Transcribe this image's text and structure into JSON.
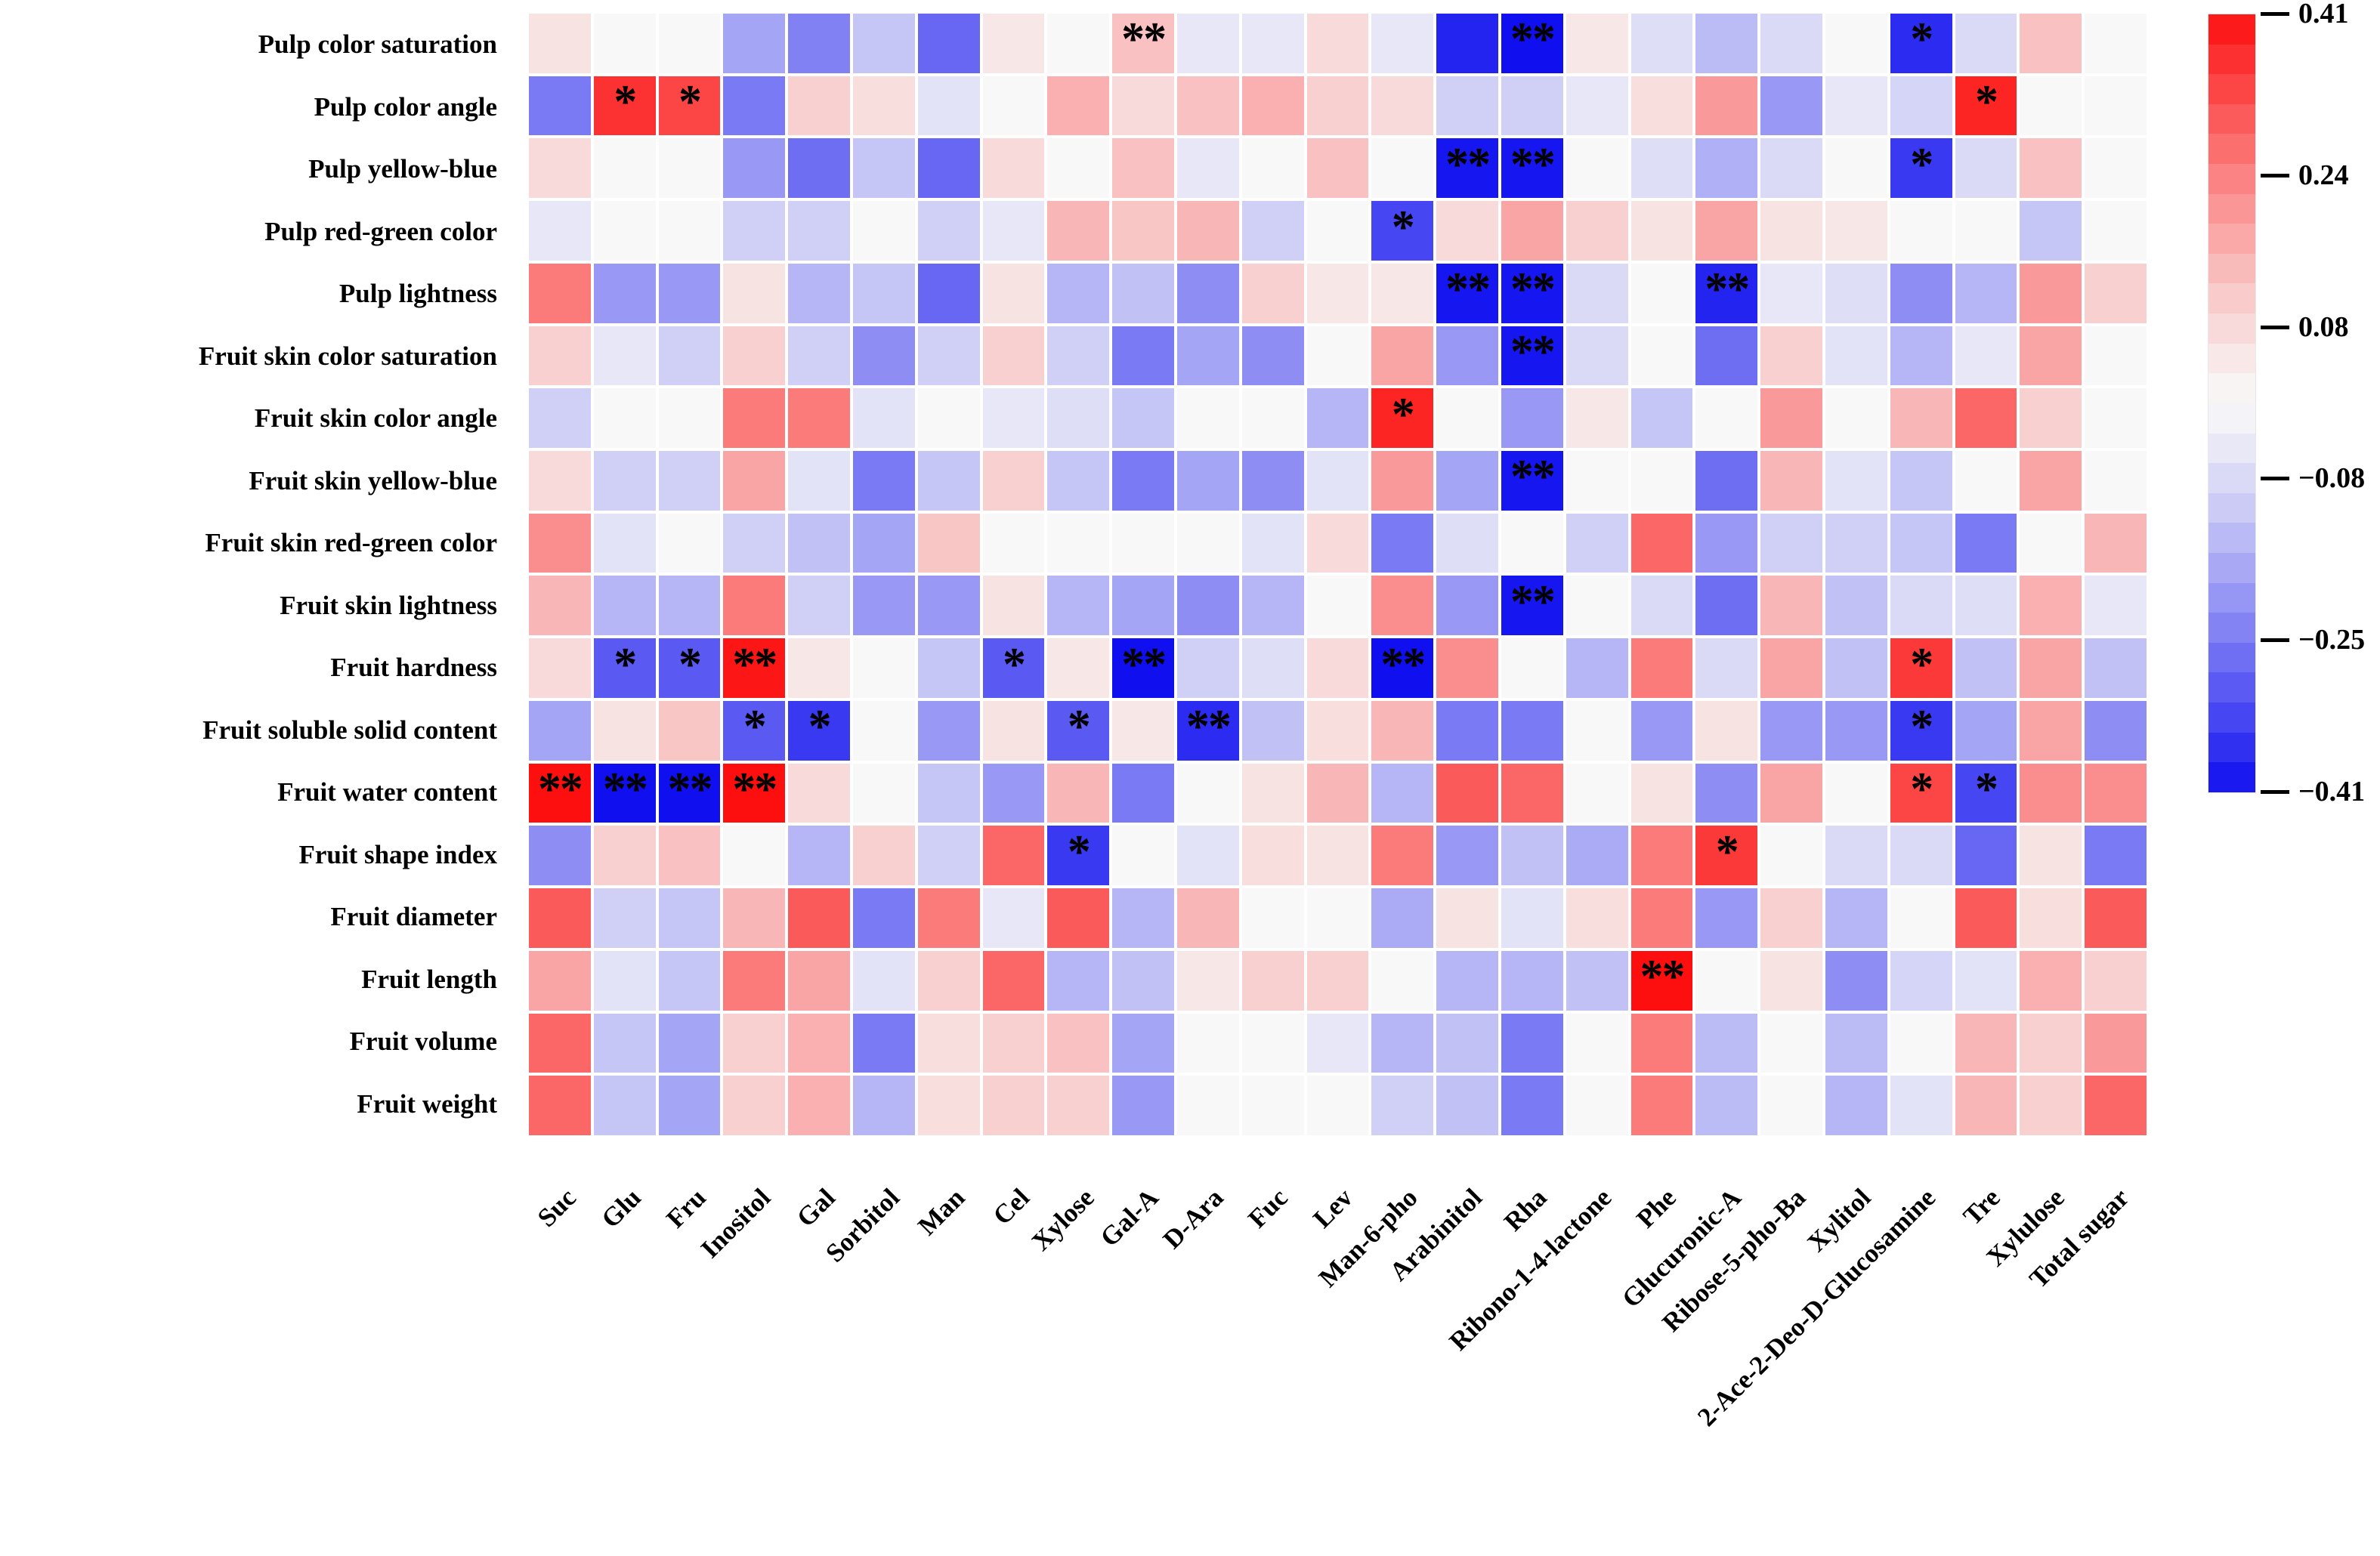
{
  "chart_data": {
    "type": "heatmap",
    "title": "",
    "xlabel": "",
    "ylabel": "",
    "legend_position": "right",
    "grid": "white-gaps",
    "rows": [
      "Pulp color saturation",
      "Pulp color angle",
      "Pulp yellow-blue",
      "Pulp red-green color",
      "Pulp lightness",
      "Fruit skin color saturation",
      "Fruit skin color angle",
      "Fruit skin yellow-blue",
      "Fruit skin red-green color",
      "Fruit skin lightness",
      "Fruit hardness",
      "Fruit soluble solid content",
      "Fruit water content",
      "Fruit shape index",
      "Fruit diameter",
      "Fruit length",
      "Fruit volume",
      "Fruit weight"
    ],
    "columns": [
      "Suc",
      "Glu",
      "Fru",
      "Inositol",
      "Gal",
      "Sorbitol",
      "Man",
      "Cel",
      "Xylose",
      "Gal-A",
      "D-Ara",
      "Fuc",
      "Lev",
      "Man-6-pho",
      "Arabinitol",
      "Rha",
      "Ribono-1-4-lactone",
      "Phe",
      "Glucuronic-A",
      "Ribose-5-pho-Ba",
      "Xylitol",
      "2-Ace-2-Deo-D-Glucosamine",
      "Tre",
      "Xylulose",
      "Total sugar"
    ],
    "values": [
      [
        0.06,
        0,
        0,
        -0.18,
        -0.24,
        -0.12,
        -0.28,
        0.05,
        0,
        0.13,
        -0.05,
        -0.05,
        0.08,
        -0.05,
        -0.38,
        -0.41,
        0.05,
        -0.07,
        -0.14,
        -0.08,
        0,
        -0.37,
        -0.08,
        0.13,
        0
      ],
      [
        -0.25,
        0.36,
        0.33,
        -0.25,
        0.1,
        0.07,
        -0.06,
        0,
        0.16,
        0.08,
        0.13,
        0.16,
        0.1,
        0.08,
        -0.1,
        -0.1,
        -0.05,
        0.07,
        0.2,
        -0.2,
        -0.05,
        -0.09,
        0.38,
        0,
        0
      ],
      [
        0.08,
        0,
        0,
        -0.2,
        -0.27,
        -0.12,
        -0.28,
        0.08,
        0,
        0.13,
        -0.05,
        0,
        0.13,
        0,
        -0.4,
        -0.4,
        0,
        -0.07,
        -0.16,
        -0.08,
        0,
        -0.35,
        -0.08,
        0.13,
        0
      ],
      [
        -0.05,
        0,
        0,
        -0.1,
        -0.1,
        0,
        -0.1,
        -0.05,
        0.15,
        0.12,
        0.15,
        -0.1,
        0,
        -0.33,
        0.08,
        0.18,
        0.1,
        0.06,
        0.18,
        0.06,
        0.05,
        0,
        0,
        -0.12,
        0
      ],
      [
        0.25,
        -0.2,
        -0.2,
        0.06,
        -0.15,
        -0.12,
        -0.28,
        0.06,
        -0.15,
        -0.13,
        -0.22,
        0.1,
        0.05,
        0.05,
        -0.4,
        -0.4,
        -0.08,
        0,
        -0.38,
        -0.05,
        -0.07,
        -0.22,
        -0.15,
        0.2,
        0.1
      ],
      [
        0.1,
        -0.05,
        -0.1,
        0.1,
        -0.1,
        -0.22,
        -0.1,
        0.1,
        -0.1,
        -0.25,
        -0.18,
        -0.22,
        0,
        0.18,
        -0.2,
        -0.4,
        -0.08,
        0,
        -0.27,
        0.1,
        -0.06,
        -0.15,
        -0.05,
        0.18,
        0
      ],
      [
        -0.1,
        0,
        0,
        0.25,
        0.25,
        -0.06,
        0,
        -0.05,
        -0.07,
        -0.12,
        0,
        0,
        -0.15,
        0.38,
        0,
        -0.2,
        0.05,
        -0.12,
        0,
        0.2,
        0,
        0.15,
        0.28,
        0.1,
        0
      ],
      [
        0.08,
        -0.1,
        -0.1,
        0.18,
        -0.06,
        -0.25,
        -0.12,
        0.1,
        -0.12,
        -0.25,
        -0.18,
        -0.22,
        -0.06,
        0.2,
        -0.18,
        -0.4,
        0,
        0,
        -0.27,
        0.15,
        -0.06,
        -0.12,
        0,
        0.18,
        0
      ],
      [
        0.22,
        -0.06,
        0,
        -0.1,
        -0.13,
        -0.18,
        0.12,
        0,
        0,
        0,
        0,
        -0.06,
        0.08,
        -0.25,
        -0.07,
        0,
        -0.1,
        0.28,
        -0.2,
        -0.1,
        -0.1,
        -0.12,
        -0.25,
        0,
        0.15
      ],
      [
        0.15,
        -0.15,
        -0.15,
        0.25,
        -0.1,
        -0.2,
        -0.2,
        0.06,
        -0.15,
        -0.18,
        -0.22,
        -0.15,
        0,
        0.22,
        -0.2,
        -0.4,
        0,
        -0.08,
        -0.27,
        0.15,
        -0.13,
        -0.08,
        -0.07,
        0.16,
        -0.05
      ],
      [
        0.08,
        -0.3,
        -0.3,
        0.4,
        0.05,
        0,
        -0.12,
        -0.3,
        0.05,
        -0.41,
        -0.1,
        -0.07,
        0.08,
        -0.41,
        0.22,
        0,
        -0.15,
        0.25,
        -0.08,
        0.18,
        -0.13,
        0.35,
        -0.13,
        0.18,
        -0.13
      ],
      [
        -0.18,
        0.06,
        0.12,
        -0.3,
        -0.35,
        0,
        -0.2,
        0.06,
        -0.3,
        0.05,
        -0.37,
        -0.13,
        0.07,
        0.15,
        -0.25,
        -0.25,
        0,
        -0.2,
        0.06,
        -0.2,
        -0.2,
        -0.35,
        -0.18,
        0.18,
        -0.22
      ],
      [
        0.41,
        -0.41,
        -0.41,
        0.41,
        0.08,
        0,
        -0.12,
        -0.2,
        0.15,
        -0.25,
        0,
        0.06,
        0.15,
        -0.15,
        0.3,
        0.28,
        0,
        0.06,
        -0.22,
        0.18,
        0,
        0.33,
        -0.33,
        0.22,
        0.22
      ],
      [
        -0.22,
        0.1,
        0.13,
        0,
        -0.15,
        0.1,
        -0.1,
        0.28,
        -0.35,
        0,
        -0.06,
        0.07,
        0.06,
        0.25,
        -0.2,
        -0.13,
        -0.17,
        0.25,
        0.35,
        0,
        -0.08,
        -0.08,
        -0.28,
        0.06,
        -0.25
      ],
      [
        0.3,
        -0.1,
        -0.12,
        0.15,
        0.3,
        -0.25,
        0.25,
        -0.05,
        0.3,
        -0.15,
        0.15,
        0,
        0,
        -0.17,
        0.06,
        -0.06,
        0.07,
        0.25,
        -0.2,
        0.1,
        -0.15,
        0,
        0.3,
        0.07,
        0.3
      ],
      [
        0.18,
        -0.06,
        -0.12,
        0.25,
        0.18,
        -0.06,
        0.1,
        0.28,
        -0.15,
        -0.13,
        0.05,
        0.1,
        0.1,
        0,
        -0.15,
        -0.15,
        -0.13,
        0.41,
        0,
        0.06,
        -0.22,
        -0.09,
        -0.06,
        0.16,
        0.1
      ],
      [
        0.28,
        -0.12,
        -0.18,
        0.1,
        0.16,
        -0.25,
        0.07,
        0.1,
        0.13,
        -0.18,
        0,
        0,
        -0.05,
        -0.15,
        -0.13,
        -0.25,
        0,
        0.25,
        -0.14,
        0,
        -0.14,
        0,
        0.15,
        0.1,
        0.2
      ],
      [
        0.28,
        -0.12,
        -0.18,
        0.1,
        0.16,
        -0.15,
        0.07,
        0.1,
        0.1,
        -0.2,
        0,
        0,
        0,
        -0.1,
        -0.13,
        -0.25,
        0,
        0.25,
        -0.14,
        0,
        -0.15,
        -0.06,
        0.15,
        0.1,
        0.28
      ]
    ],
    "significance": [
      [
        "",
        "",
        "",
        "",
        "",
        "",
        "",
        "",
        "",
        "**",
        "",
        "",
        "",
        "",
        "",
        "**",
        "",
        "",
        "",
        "",
        "",
        "*",
        "",
        "",
        ""
      ],
      [
        "",
        "*",
        "*",
        "",
        "",
        "",
        "",
        "",
        "",
        "",
        "",
        "",
        "",
        "",
        "",
        "",
        "",
        "",
        "",
        "",
        "",
        "",
        "*",
        "",
        ""
      ],
      [
        "",
        "",
        "",
        "",
        "",
        "",
        "",
        "",
        "",
        "",
        "",
        "",
        "",
        "",
        "**",
        "**",
        "",
        "",
        "",
        "",
        "",
        "*",
        "",
        "",
        ""
      ],
      [
        "",
        "",
        "",
        "",
        "",
        "",
        "",
        "",
        "",
        "",
        "",
        "",
        "",
        "*",
        "",
        "",
        "",
        "",
        "",
        "",
        "",
        "",
        "",
        "",
        ""
      ],
      [
        "",
        "",
        "",
        "",
        "",
        "",
        "",
        "",
        "",
        "",
        "",
        "",
        "",
        "",
        "**",
        "**",
        "",
        "",
        "**",
        "",
        "",
        "",
        "",
        "",
        ""
      ],
      [
        "",
        "",
        "",
        "",
        "",
        "",
        "",
        "",
        "",
        "",
        "",
        "",
        "",
        "",
        "",
        "**",
        "",
        "",
        "",
        "",
        "",
        "",
        "",
        "",
        ""
      ],
      [
        "",
        "",
        "",
        "",
        "",
        "",
        "",
        "",
        "",
        "",
        "",
        "",
        "",
        "*",
        "",
        "",
        "",
        "",
        "",
        "",
        "",
        "",
        "",
        "",
        ""
      ],
      [
        "",
        "",
        "",
        "",
        "",
        "",
        "",
        "",
        "",
        "",
        "",
        "",
        "",
        "",
        "",
        "**",
        "",
        "",
        "",
        "",
        "",
        "",
        "",
        "",
        ""
      ],
      [
        "",
        "",
        "",
        "",
        "",
        "",
        "",
        "",
        "",
        "",
        "",
        "",
        "",
        "",
        "",
        "",
        "",
        "",
        "",
        "",
        "",
        "",
        "",
        "",
        ""
      ],
      [
        "",
        "",
        "",
        "",
        "",
        "",
        "",
        "",
        "",
        "",
        "",
        "",
        "",
        "",
        "",
        "**",
        "",
        "",
        "",
        "",
        "",
        "",
        "",
        "",
        ""
      ],
      [
        "",
        "*",
        "*",
        "**",
        "",
        "",
        "",
        "*",
        "",
        "**",
        "",
        "",
        "",
        "**",
        "",
        "",
        "",
        "",
        "",
        "",
        "",
        "*",
        "",
        "",
        ""
      ],
      [
        "",
        "",
        "",
        "*",
        "*",
        "",
        "",
        "",
        "*",
        "",
        "**",
        "",
        "",
        "",
        "",
        "",
        "",
        "",
        "",
        "",
        "",
        "*",
        "",
        "",
        ""
      ],
      [
        "**",
        "**",
        "**",
        "**",
        "",
        "",
        "",
        "",
        "",
        "",
        "",
        "",
        "",
        "",
        "",
        "",
        "",
        "",
        "",
        "",
        "",
        "*",
        "*",
        "",
        ""
      ],
      [
        "",
        "",
        "",
        "",
        "",
        "",
        "",
        "",
        "*",
        "",
        "",
        "",
        "",
        "",
        "",
        "",
        "",
        "",
        "*",
        "",
        "",
        "",
        "",
        "",
        ""
      ],
      [
        "",
        "",
        "",
        "",
        "",
        "",
        "",
        "",
        "",
        "",
        "",
        "",
        "",
        "",
        "",
        "",
        "",
        "",
        "",
        "",
        "",
        "",
        "",
        "",
        ""
      ],
      [
        "",
        "",
        "",
        "",
        "",
        "",
        "",
        "",
        "",
        "",
        "",
        "",
        "",
        "",
        "",
        "",
        "",
        "**",
        "",
        "",
        "",
        "",
        "",
        "",
        ""
      ],
      [
        "",
        "",
        "",
        "",
        "",
        "",
        "",
        "",
        "",
        "",
        "",
        "",
        "",
        "",
        "",
        "",
        "",
        "",
        "",
        "",
        "",
        "",
        "",
        "",
        ""
      ],
      [
        "",
        "",
        "",
        "",
        "",
        "",
        "",
        "",
        "",
        "",
        "",
        "",
        "",
        "",
        "",
        "",
        "",
        "",
        "",
        "",
        "",
        "",
        "",
        "",
        ""
      ]
    ],
    "colorbar": {
      "vmin": -0.41,
      "vmax": 0.41,
      "bands": 26,
      "tick_values": [
        0.41,
        0.24,
        0.08,
        -0.08,
        -0.25,
        -0.41
      ],
      "tick_labels": [
        "0.41",
        "0.24",
        "0.08",
        "−0.08",
        "−0.25",
        "−0.41"
      ],
      "color_positive": "#fd0f0f",
      "color_negative": "#0f0ff0",
      "color_zero": "#f8f8f8"
    }
  }
}
